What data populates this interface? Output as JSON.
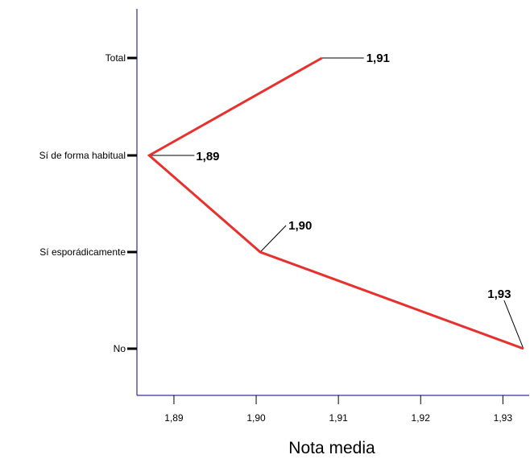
{
  "chart_data": {
    "type": "line",
    "orientation": "horizontal",
    "categories": [
      "Total",
      "Sí de forma habitual",
      "Sí esporádicamente",
      "No"
    ],
    "values": [
      1.908,
      1.887,
      1.9005,
      1.9325
    ],
    "data_labels": [
      "1,91",
      "1,89",
      "1,90",
      "1,93"
    ],
    "x_ticks": [
      "1,89",
      "1,90",
      "1,91",
      "1,92",
      "1,93"
    ],
    "x_tick_values": [
      1.89,
      1.9,
      1.91,
      1.92,
      1.93
    ],
    "xlim": [
      1.8855,
      1.9332
    ],
    "xlabel": "Nota media",
    "ylabel": "",
    "title": "",
    "grid": false,
    "line_color": "#e8302f",
    "frame_color": "#000080"
  }
}
